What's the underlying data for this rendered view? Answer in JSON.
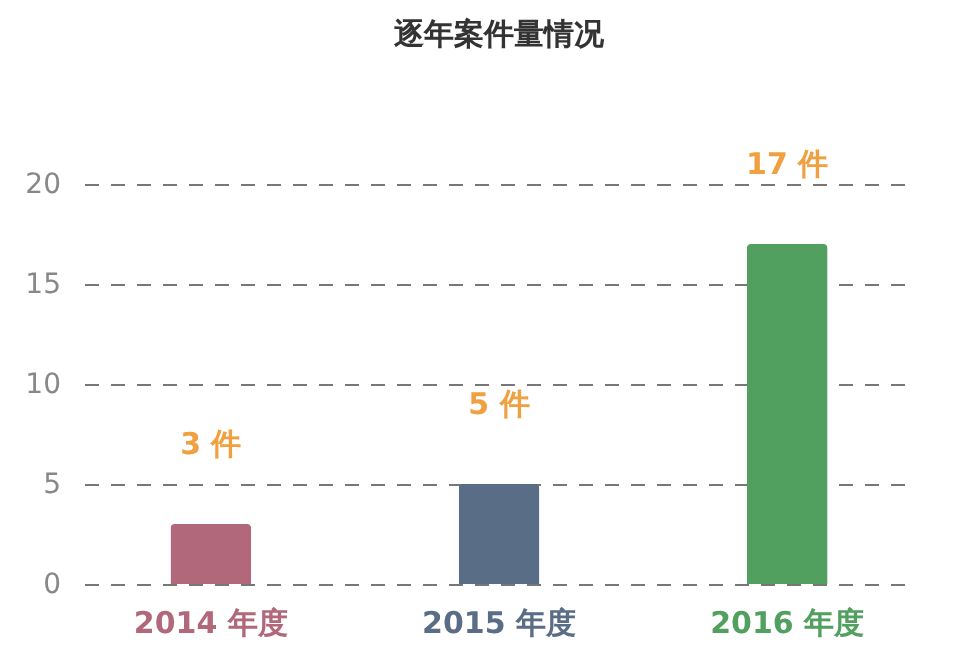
{
  "chart_data": {
    "type": "bar",
    "title": "逐年案件量情况",
    "categories": [
      "2014 年度",
      "2015 年度",
      "2016 年度"
    ],
    "values": [
      3,
      5,
      17
    ],
    "colors": [
      "#b0687a",
      "#5a6d86",
      "#52a060"
    ],
    "value_labels": [
      "3 件",
      "5 件",
      "17 件"
    ],
    "ylim": [
      0,
      20
    ],
    "yticks": [
      0,
      5,
      10,
      15,
      20
    ],
    "grid": "y"
  }
}
